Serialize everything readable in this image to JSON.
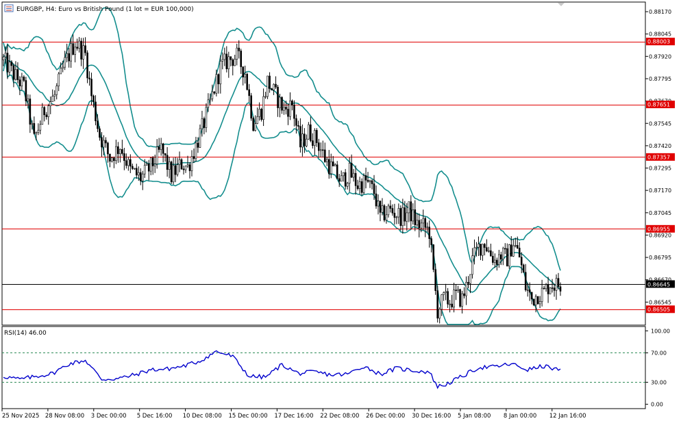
{
  "window": {
    "title": "EURGBP, H4:  Euro vs British Pound (1 lot = EUR 100,000)"
  },
  "chart_data": [
    {
      "type": "candlestick",
      "symbol": "EURGBP",
      "timeframe": "H4",
      "ylim": [
        0.8642,
        0.8822
      ],
      "y_ticks": [
        "0.88170",
        "0.88045",
        "0.87920",
        "0.87795",
        "0.87670",
        "0.87545",
        "0.87420",
        "0.87295",
        "0.87170",
        "0.87045",
        "0.86920",
        "0.86795",
        "0.86670",
        "0.86545"
      ],
      "x_ticks": [
        "25 Nov 2025",
        "28 Nov 08:00",
        "3 Dec 00:00",
        "5 Dec 16:00",
        "10 Dec 08:00",
        "15 Dec 00:00",
        "17 Dec 16:00",
        "22 Dec 08:00",
        "26 Dec 00:00",
        "30 Dec 16:00",
        "5 Jan 08:00",
        "8 Jan 00:00",
        "12 Jan 16:00"
      ],
      "current_price": "0.86645",
      "horizontal_levels": [
        "0.88003",
        "0.87651",
        "0.87357",
        "0.86955",
        "0.86505"
      ],
      "indicator": "Bollinger Bands",
      "close_path": [
        [
          0,
          0.879
        ],
        [
          5,
          0.8782
        ],
        [
          10,
          0.8775
        ],
        [
          15,
          0.8745
        ],
        [
          20,
          0.8762
        ],
        [
          25,
          0.877
        ],
        [
          30,
          0.8788
        ],
        [
          35,
          0.88
        ],
        [
          40,
          0.8793
        ],
        [
          43,
          0.877
        ],
        [
          47,
          0.8748
        ],
        [
          52,
          0.8735
        ],
        [
          57,
          0.8742
        ],
        [
          62,
          0.8728
        ],
        [
          67,
          0.8724
        ],
        [
          72,
          0.873
        ],
        [
          77,
          0.874
        ],
        [
          82,
          0.8725
        ],
        [
          87,
          0.8732
        ],
        [
          90,
          0.873
        ],
        [
          94,
          0.8742
        ],
        [
          98,
          0.8755
        ],
        [
          102,
          0.877
        ],
        [
          106,
          0.8786
        ],
        [
          110,
          0.879
        ],
        [
          114,
          0.8792
        ],
        [
          118,
          0.8783
        ],
        [
          122,
          0.8755
        ],
        [
          126,
          0.8762
        ],
        [
          129,
          0.8778
        ],
        [
          133,
          0.877
        ],
        [
          137,
          0.8762
        ],
        [
          141,
          0.8765
        ],
        [
          145,
          0.8742
        ],
        [
          149,
          0.875
        ],
        [
          153,
          0.8745
        ],
        [
          157,
          0.8735
        ],
        [
          161,
          0.8728
        ],
        [
          165,
          0.8722
        ],
        [
          169,
          0.8727
        ],
        [
          173,
          0.872
        ],
        [
          177,
          0.8722
        ],
        [
          181,
          0.8716
        ],
        [
          184,
          0.8702
        ],
        [
          188,
          0.8706
        ],
        [
          192,
          0.8704
        ],
        [
          195,
          0.8702
        ],
        [
          198,
          0.8706
        ],
        [
          202,
          0.8698
        ],
        [
          205,
          0.8697
        ],
        [
          208,
          0.8694
        ],
        [
          210,
          0.867
        ],
        [
          212,
          0.865
        ],
        [
          215,
          0.8656
        ],
        [
          218,
          0.8655
        ],
        [
          221,
          0.8658
        ],
        [
          224,
          0.8656
        ],
        [
          226,
          0.8663
        ],
        [
          229,
          0.8678
        ],
        [
          232,
          0.8685
        ],
        [
          235,
          0.8688
        ],
        [
          237,
          0.8683
        ],
        [
          240,
          0.8678
        ],
        [
          243,
          0.8681
        ],
        [
          246,
          0.8679
        ],
        [
          249,
          0.8688
        ],
        [
          252,
          0.868
        ],
        [
          255,
          0.8663
        ],
        [
          258,
          0.8656
        ],
        [
          261,
          0.8659
        ],
        [
          264,
          0.866
        ],
        [
          267,
          0.8665
        ],
        [
          270,
          0.8664
        ],
        [
          272,
          0.86645
        ]
      ]
    },
    {
      "type": "line",
      "title": "RSI(14) 46.00",
      "ylim": [
        -5,
        105
      ],
      "y_ticks": [
        "100.00",
        "70.00",
        "30.00",
        "0.00"
      ],
      "levels": [
        70,
        30
      ],
      "series": [
        {
          "color": "#0000cc",
          "x": [
            0,
            8,
            16,
            24,
            32,
            40,
            48,
            56,
            64,
            72,
            80,
            88,
            96,
            104,
            112,
            120,
            128,
            136,
            144,
            152,
            160,
            168,
            176,
            184,
            192,
            200,
            208,
            212,
            216,
            224,
            232,
            240,
            248,
            256,
            264,
            272
          ],
          "values": [
            38,
            34,
            38,
            42,
            55,
            60,
            34,
            35,
            40,
            47,
            48,
            52,
            59,
            72,
            65,
            38,
            37,
            54,
            42,
            44,
            40,
            41,
            52,
            41,
            49,
            46,
            44,
            24,
            27,
            38,
            50,
            51,
            55,
            47,
            52,
            46
          ]
        }
      ]
    }
  ]
}
